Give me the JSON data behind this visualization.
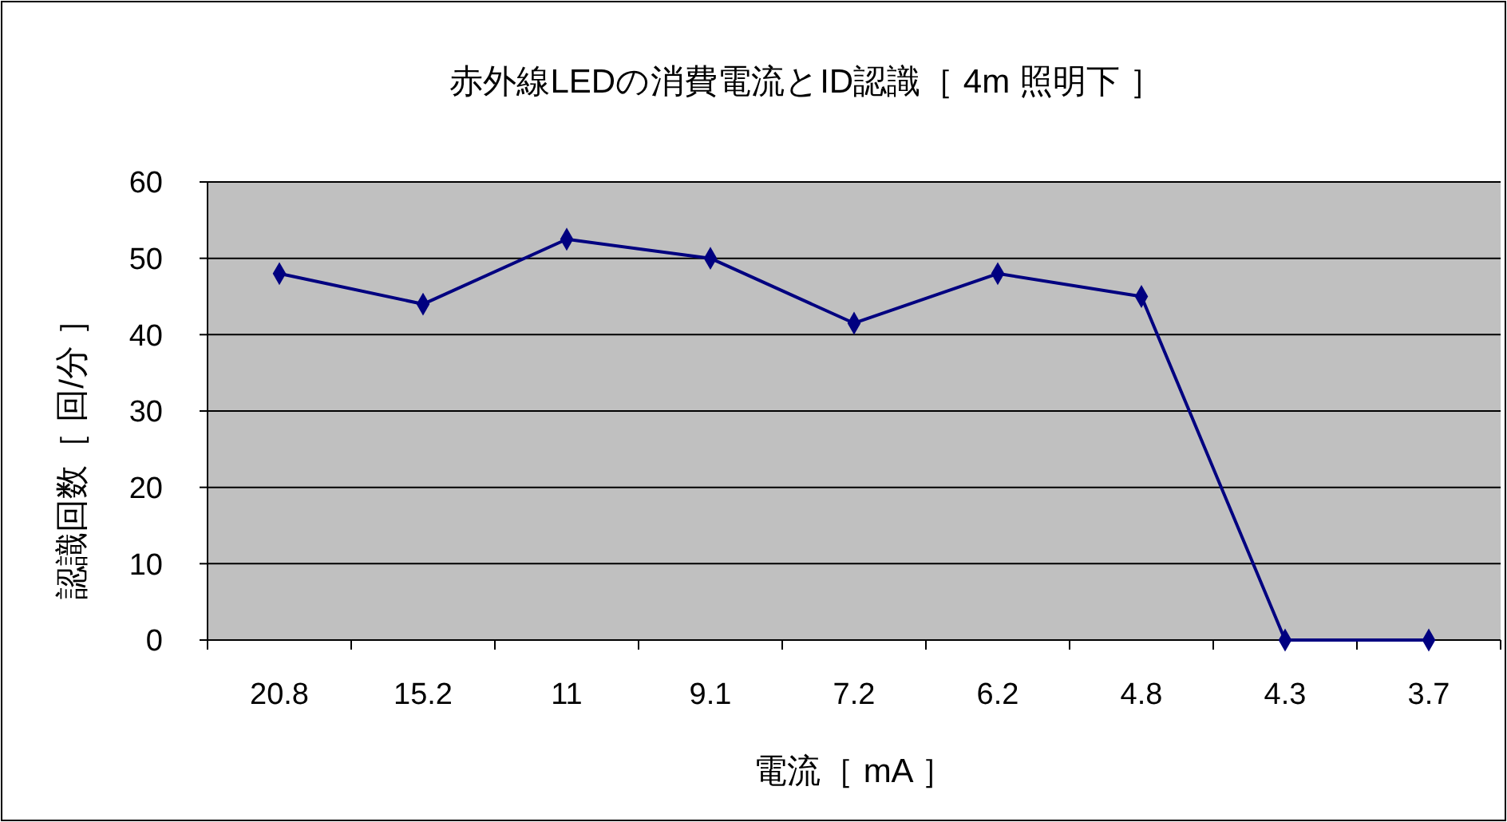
{
  "chart_data": {
    "type": "line",
    "title": "赤外線LEDの消費電流とID認識［ 4m 照明下 ］",
    "xlabel": "電流［ mA ］",
    "ylabel": "認識回数［ 回/分 ］",
    "categories": [
      "20.8",
      "15.2",
      "11",
      "9.1",
      "7.2",
      "6.2",
      "4.8",
      "4.3",
      "3.7"
    ],
    "series": [
      {
        "color": "#000080",
        "values": [
          48,
          44,
          52.5,
          50,
          41.5,
          48,
          45,
          0,
          0
        ]
      }
    ],
    "ylim": [
      0,
      60
    ],
    "yticks": [
      0,
      10,
      20,
      30,
      40,
      50,
      60
    ],
    "grid": "y",
    "marker": "diamond",
    "line_style": "solid"
  }
}
